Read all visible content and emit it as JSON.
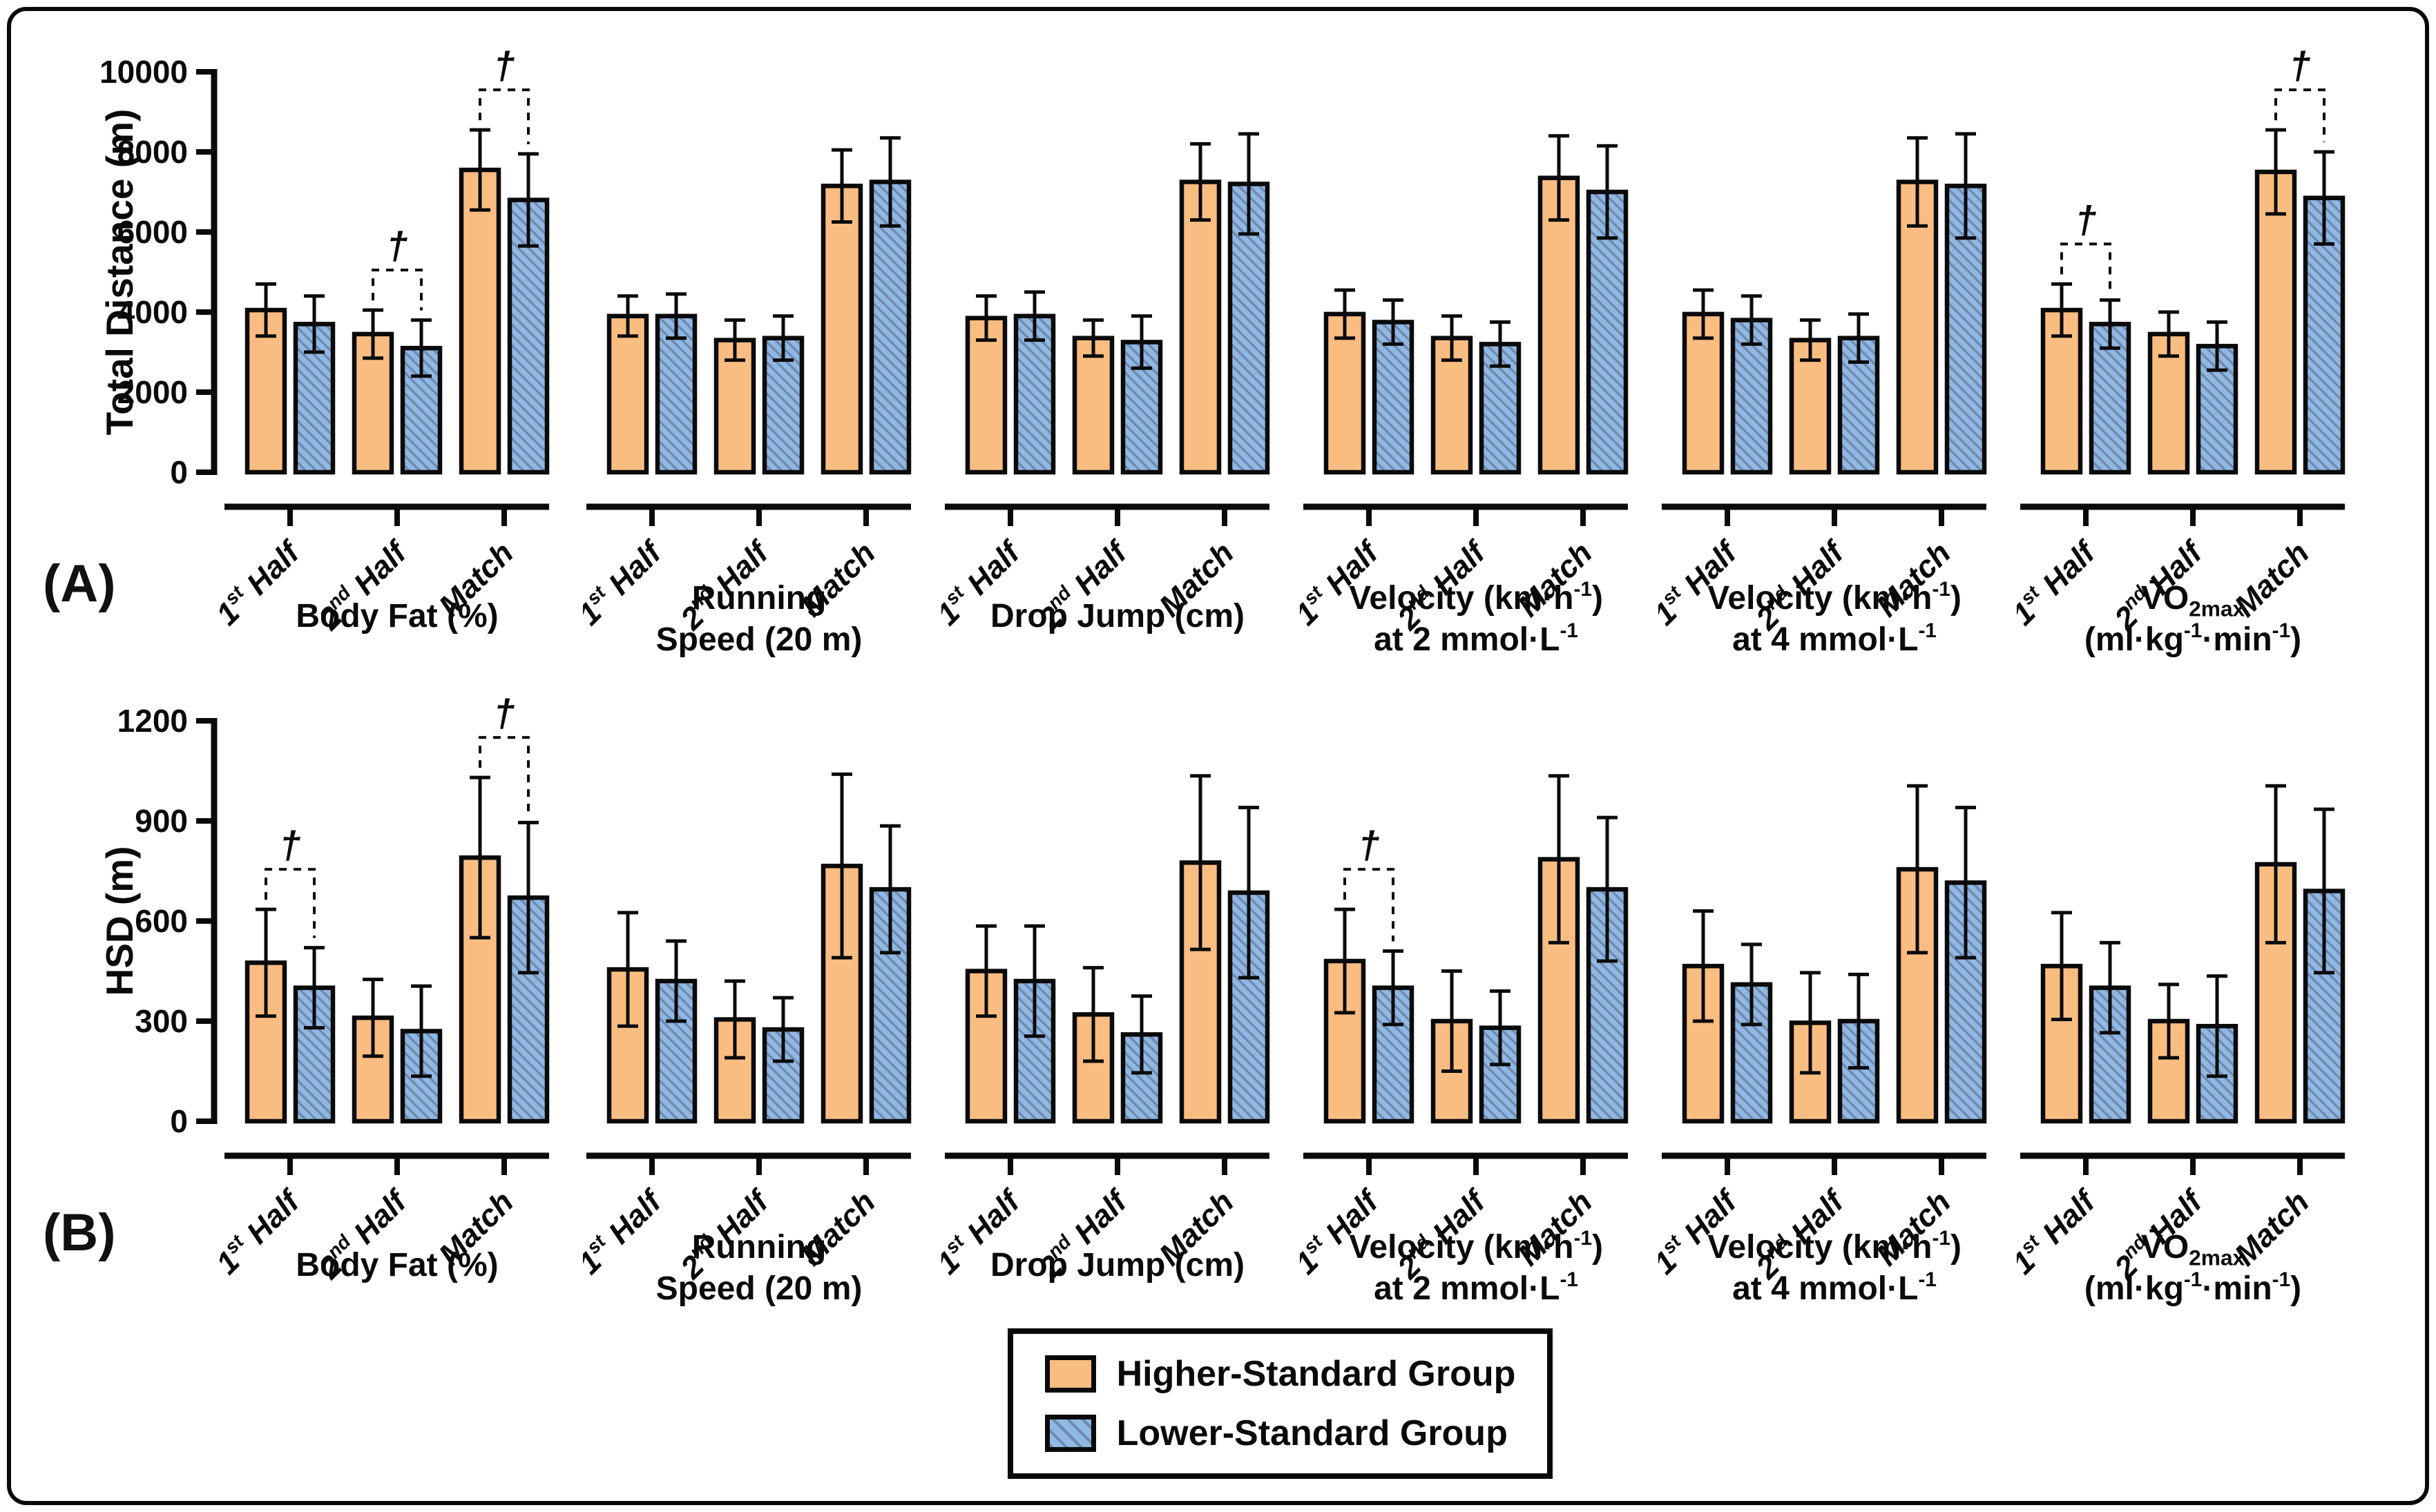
{
  "figure": {
    "row_a_label": "(A)",
    "row_b_label": "(B)",
    "dagger_symbol": "†"
  },
  "colors": {
    "higher_fill": "#F9BD82",
    "lower_fill": "#8FB8E4",
    "hatch_line": "#7189AC",
    "outline": "#0a0a0a"
  },
  "legend": {
    "items": [
      {
        "label": "Higher-Standard Group",
        "swatch": "orange-solid"
      },
      {
        "label": "Lower-Standard Group",
        "swatch": "blue-hatched"
      }
    ]
  },
  "chart_data": {
    "type": "bar",
    "grid": false,
    "legend_position": "bottom-center",
    "categories": [
      "1^st^ Half",
      "2^nd^ Half",
      "Match"
    ],
    "series_names": [
      "Higher-Standard Group",
      "Lower-Standard Group"
    ],
    "rows": [
      {
        "row_label": "(A)",
        "ylabel": "Total Distance (m)",
        "ylim": [
          0,
          10000
        ],
        "yticks": [
          0,
          2000,
          4000,
          6000,
          8000,
          10000
        ],
        "panels": [
          {
            "title_lines": [
              "Body Fat (%)"
            ],
            "series": [
              {
                "name": "Higher-Standard Group",
                "values": [
                  4050,
                  3450,
                  7550
                ],
                "errors": [
                  650,
                  600,
                  1000
                ]
              },
              {
                "name": "Lower-Standard Group",
                "values": [
                  3700,
                  3100,
                  6800
                ],
                "errors": [
                  700,
                  700,
                  1150
                ]
              }
            ],
            "daggers": [
              false,
              true,
              true
            ]
          },
          {
            "title_lines": [
              "Running",
              "Speed (20 m)"
            ],
            "series": [
              {
                "name": "Higher-Standard Group",
                "values": [
                  3900,
                  3300,
                  7150
                ],
                "errors": [
                  500,
                  500,
                  900
                ]
              },
              {
                "name": "Lower-Standard Group",
                "values": [
                  3900,
                  3350,
                  7250
                ],
                "errors": [
                  550,
                  550,
                  1100
                ]
              }
            ],
            "daggers": [
              false,
              false,
              false
            ]
          },
          {
            "title_lines": [
              "Drop Jump (cm)"
            ],
            "series": [
              {
                "name": "Higher-Standard Group",
                "values": [
                  3850,
                  3350,
                  7250
                ],
                "errors": [
                  550,
                  450,
                  950
                ]
              },
              {
                "name": "Lower-Standard Group",
                "values": [
                  3900,
                  3250,
                  7200
                ],
                "errors": [
                  600,
                  650,
                  1250
                ]
              }
            ],
            "daggers": [
              false,
              false,
              false
            ]
          },
          {
            "title_lines": [
              "Velocity (km·h^-1^)",
              "at 2 mmol·L^-1^"
            ],
            "series": [
              {
                "name": "Higher-Standard Group",
                "values": [
                  3950,
                  3350,
                  7350
                ],
                "errors": [
                  600,
                  550,
                  1050
                ]
              },
              {
                "name": "Lower-Standard Group",
                "values": [
                  3750,
                  3200,
                  7000
                ],
                "errors": [
                  550,
                  550,
                  1150
                ]
              }
            ],
            "daggers": [
              false,
              false,
              false
            ]
          },
          {
            "title_lines": [
              "Velocity (km·h^-1^)",
              "at 4 mmol·L^-1^"
            ],
            "series": [
              {
                "name": "Higher-Standard Group",
                "values": [
                  3950,
                  3300,
                  7250
                ],
                "errors": [
                  600,
                  500,
                  1100
                ]
              },
              {
                "name": "Lower-Standard Group",
                "values": [
                  3800,
                  3350,
                  7150
                ],
                "errors": [
                  600,
                  600,
                  1300
                ]
              }
            ],
            "daggers": [
              false,
              false,
              false
            ]
          },
          {
            "title_lines": [
              "V̇O_2max_",
              "(ml·kg^-1^·min^-1^)"
            ],
            "series": [
              {
                "name": "Higher-Standard Group",
                "values": [
                  4050,
                  3450,
                  7500
                ],
                "errors": [
                  650,
                  550,
                  1050
                ]
              },
              {
                "name": "Lower-Standard Group",
                "values": [
                  3700,
                  3150,
                  6850
                ],
                "errors": [
                  600,
                  600,
                  1150
                ]
              }
            ],
            "daggers": [
              true,
              false,
              true
            ]
          }
        ]
      },
      {
        "row_label": "(B)",
        "ylabel": "HSD (m)",
        "ylim": [
          0,
          1200
        ],
        "yticks": [
          0,
          300,
          600,
          900,
          1200
        ],
        "panels": [
          {
            "title_lines": [
              "Body Fat (%)"
            ],
            "series": [
              {
                "name": "Higher-Standard Group",
                "values": [
                  475,
                  310,
                  790
                ],
                "errors": [
                  160,
                  115,
                  240
                ]
              },
              {
                "name": "Lower-Standard Group",
                "values": [
                  400,
                  270,
                  670
                ],
                "errors": [
                  120,
                  135,
                  225
                ]
              }
            ],
            "daggers": [
              true,
              false,
              true
            ]
          },
          {
            "title_lines": [
              "Running",
              "Speed (20 m)"
            ],
            "series": [
              {
                "name": "Higher-Standard Group",
                "values": [
                  455,
                  305,
                  765
                ],
                "errors": [
                  170,
                  115,
                  275
                ]
              },
              {
                "name": "Lower-Standard Group",
                "values": [
                  420,
                  275,
                  695
                ],
                "errors": [
                  120,
                  95,
                  190
                ]
              }
            ],
            "daggers": [
              false,
              false,
              false
            ]
          },
          {
            "title_lines": [
              "Drop Jump (cm)"
            ],
            "series": [
              {
                "name": "Higher-Standard Group",
                "values": [
                  450,
                  320,
                  775
                ],
                "errors": [
                  135,
                  140,
                  260
                ]
              },
              {
                "name": "Lower-Standard Group",
                "values": [
                  420,
                  260,
                  685
                ],
                "errors": [
                  165,
                  115,
                  255
                ]
              }
            ],
            "daggers": [
              false,
              false,
              false
            ]
          },
          {
            "title_lines": [
              "Velocity (km·h^-1^)",
              "at 2 mmol·L^-1^"
            ],
            "series": [
              {
                "name": "Higher-Standard Group",
                "values": [
                  480,
                  300,
                  785
                ],
                "errors": [
                  155,
                  150,
                  250
                ]
              },
              {
                "name": "Lower-Standard Group",
                "values": [
                  400,
                  280,
                  695
                ],
                "errors": [
                  110,
                  110,
                  215
                ]
              }
            ],
            "daggers": [
              true,
              false,
              false
            ]
          },
          {
            "title_lines": [
              "Velocity (km·h^-1^)",
              "at 4 mmol·L^-1^"
            ],
            "series": [
              {
                "name": "Higher-Standard Group",
                "values": [
                  465,
                  295,
                  755
                ],
                "errors": [
                  165,
                  150,
                  250
                ]
              },
              {
                "name": "Lower-Standard Group",
                "values": [
                  410,
                  300,
                  715
                ],
                "errors": [
                  120,
                  140,
                  225
                ]
              }
            ],
            "daggers": [
              false,
              false,
              false
            ]
          },
          {
            "title_lines": [
              "V̇O_2max_",
              "(ml·kg^-1^·min^-1^)"
            ],
            "series": [
              {
                "name": "Higher-Standard Group",
                "values": [
                  465,
                  300,
                  770
                ],
                "errors": [
                  160,
                  110,
                  235
                ]
              },
              {
                "name": "Lower-Standard Group",
                "values": [
                  400,
                  285,
                  690
                ],
                "errors": [
                  135,
                  150,
                  245
                ]
              }
            ],
            "daggers": [
              false,
              false,
              false
            ]
          }
        ]
      }
    ]
  }
}
